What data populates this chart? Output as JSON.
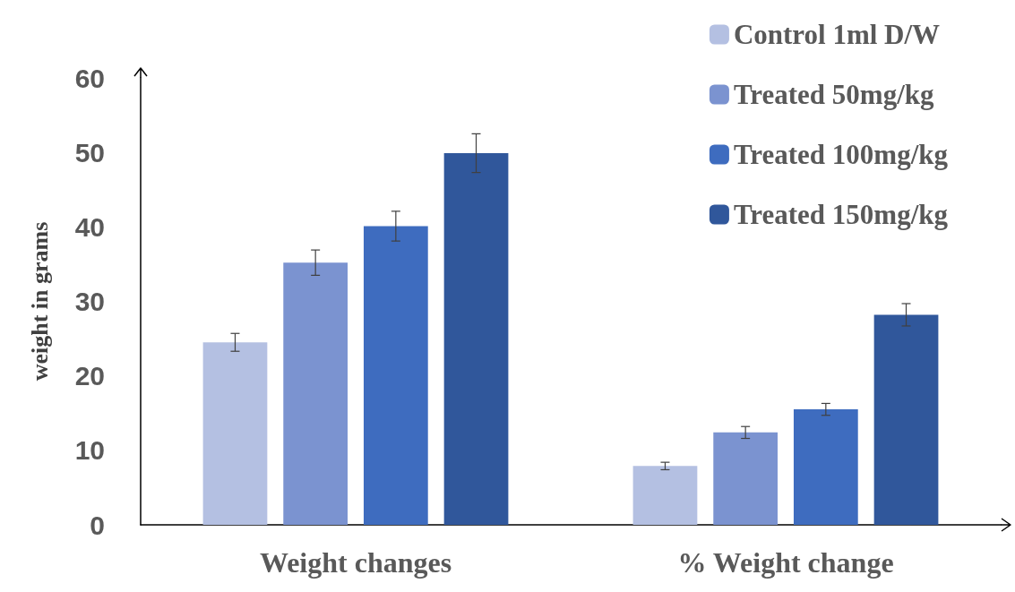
{
  "chart_data": {
    "type": "bar",
    "ylabel": "weight in grams",
    "categories": [
      "Weight changes",
      "% Weight change"
    ],
    "series": [
      {
        "name": "Control 1ml D/W",
        "color": "#b4c0e2",
        "values": [
          24.5,
          7.9
        ],
        "errors": [
          1.2,
          0.5
        ]
      },
      {
        "name": "Treated 50mg/kg",
        "color": "#7b93d0",
        "values": [
          35.2,
          12.4
        ],
        "errors": [
          1.7,
          0.8
        ]
      },
      {
        "name": "Treated 100mg/kg",
        "color": "#3e6cbf",
        "values": [
          40.1,
          15.5
        ],
        "errors": [
          2.0,
          0.8
        ]
      },
      {
        "name": "Treated 150mg/kg",
        "color": "#30579b",
        "values": [
          49.9,
          28.2
        ],
        "errors": [
          2.6,
          1.5
        ]
      }
    ],
    "ylim": [
      0,
      60
    ],
    "yticks": [
      0,
      10,
      20,
      30,
      40,
      50,
      60
    ],
    "grid": false,
    "legend": "top right"
  }
}
